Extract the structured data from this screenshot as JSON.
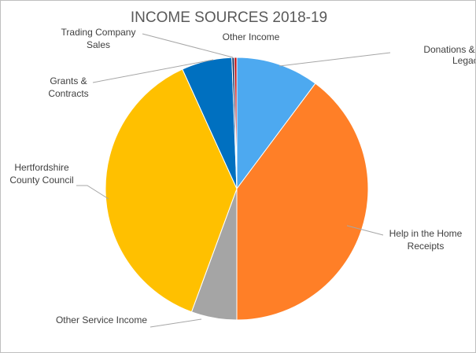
{
  "chart_data": {
    "type": "pie",
    "title": "INCOME SOURCES 2018-19",
    "start_angle_deg": 0,
    "direction": "clockwise",
    "slices": [
      {
        "label": "Donations & Legacies",
        "value": 10.2,
        "color": "#4DA9F0"
      },
      {
        "label": "Help in the Home Receipts",
        "value": 39.8,
        "color": "#FF7F27"
      },
      {
        "label": "Other Service Income",
        "value": 5.6,
        "color": "#A5A5A5"
      },
      {
        "label": "Hertfordshire County Council",
        "value": 37.6,
        "color": "#FFC000"
      },
      {
        "label": "Grants & Contracts",
        "value": 6.2,
        "color": "#0070C0"
      },
      {
        "label": "Trading Company Sales",
        "value": 0.3,
        "color": "#1F3864"
      },
      {
        "label": "Other Income",
        "value": 0.3,
        "color": "#C00000"
      }
    ]
  }
}
